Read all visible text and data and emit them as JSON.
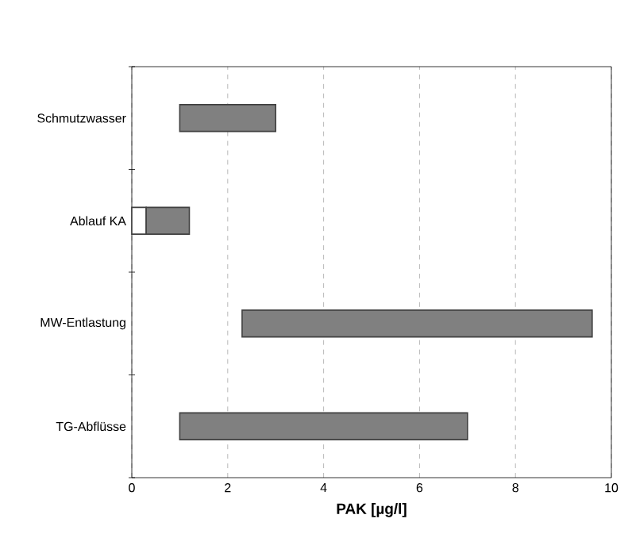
{
  "chart_data": {
    "type": "bar",
    "orientation": "horizontal",
    "xlabel": "PAK [µg/l]",
    "categories": [
      "Schmutzwasser",
      "Ablauf KA",
      "MW-Entlastung",
      "TG-Abflüsse"
    ],
    "series": [
      {
        "color": "#ffffff",
        "base": [
          null,
          0,
          null,
          null
        ],
        "values": [
          null,
          0.3,
          null,
          null
        ]
      },
      {
        "color": "#808080",
        "base": [
          1,
          0.3,
          2.3,
          1
        ],
        "values": [
          2,
          0.9,
          7.3,
          6
        ]
      }
    ],
    "xlim": [
      0,
      10
    ],
    "xticks": [
      0,
      2,
      4,
      6,
      8,
      10
    ],
    "grid": "x"
  }
}
